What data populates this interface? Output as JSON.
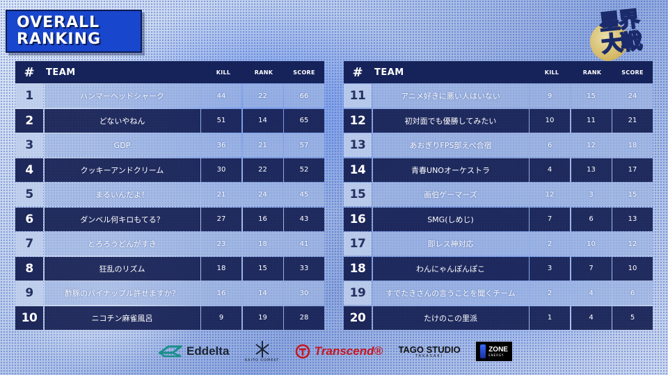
{
  "title": {
    "line1": "OVERALL",
    "line2": "RANKING"
  },
  "logo": {
    "text_top": "星界",
    "text_bottom": "大戦"
  },
  "headers": {
    "num": "#",
    "team": "TEAM",
    "kill": "KILL",
    "rank": "RANK",
    "score": "SCORE"
  },
  "left_rows": [
    {
      "rank": "1",
      "team": "ハンマーヘッドシャーク",
      "kill": "44",
      "rank_pts": "22",
      "score": "66"
    },
    {
      "rank": "2",
      "team": "どないやねん",
      "kill": "51",
      "rank_pts": "14",
      "score": "65"
    },
    {
      "rank": "3",
      "team": "GDP",
      "kill": "36",
      "rank_pts": "21",
      "score": "57"
    },
    {
      "rank": "4",
      "team": "クッキーアンドクリーム",
      "kill": "30",
      "rank_pts": "22",
      "score": "52"
    },
    {
      "rank": "5",
      "team": "まるいんだよ！",
      "kill": "21",
      "rank_pts": "24",
      "score": "45"
    },
    {
      "rank": "6",
      "team": "ダンベル何キロもてる？",
      "kill": "27",
      "rank_pts": "16",
      "score": "43"
    },
    {
      "rank": "7",
      "team": "とろろうどんがすき",
      "kill": "23",
      "rank_pts": "18",
      "score": "41"
    },
    {
      "rank": "8",
      "team": "狂乱のリズム",
      "kill": "18",
      "rank_pts": "15",
      "score": "33"
    },
    {
      "rank": "9",
      "team": "酢豚のパイナップル許せますか？",
      "kill": "16",
      "rank_pts": "14",
      "score": "30"
    },
    {
      "rank": "10",
      "team": "ニコチン麻雀風呂",
      "kill": "9",
      "rank_pts": "19",
      "score": "28"
    }
  ],
  "right_rows": [
    {
      "rank": "11",
      "team": "アニメ好きに悪い人はいない",
      "kill": "9",
      "rank_pts": "15",
      "score": "24"
    },
    {
      "rank": "12",
      "team": "初対面でも優勝してみたい",
      "kill": "10",
      "rank_pts": "11",
      "score": "21"
    },
    {
      "rank": "13",
      "team": "あおぎりFPS部えぺ合宿",
      "kill": "6",
      "rank_pts": "12",
      "score": "18"
    },
    {
      "rank": "14",
      "team": "青春UNOオーケストラ",
      "kill": "4",
      "rank_pts": "13",
      "score": "17"
    },
    {
      "rank": "15",
      "team": "画伯ゲーマーズ",
      "kill": "12",
      "rank_pts": "3",
      "score": "15"
    },
    {
      "rank": "16",
      "team": "SMG(しめじ)",
      "kill": "7",
      "rank_pts": "6",
      "score": "13"
    },
    {
      "rank": "17",
      "team": "即レス神対応",
      "kill": "2",
      "rank_pts": "10",
      "score": "12"
    },
    {
      "rank": "18",
      "team": "わんにゃんぽんぽこ",
      "kill": "3",
      "rank_pts": "7",
      "score": "10"
    },
    {
      "rank": "19",
      "team": "すでたきさんの言うことを聞くチーム",
      "kill": "2",
      "rank_pts": "4",
      "score": "6"
    },
    {
      "rank": "20",
      "team": "たけのこの里派",
      "kill": "1",
      "rank_pts": "4",
      "score": "5"
    }
  ],
  "sponsors": {
    "eddelta": "Eddelta",
    "kaito_text": "KAITO COMEKT",
    "transcend": "Transcend®",
    "tago_main": "TAGO STUDIO",
    "tago_sub": "TAKASAKI",
    "zone_main": "ZONE",
    "zone_sub": "ENERGY"
  },
  "colors": {
    "accent": "#1846cc",
    "header_bg": "#16235a",
    "transcend_red": "#c8141e"
  }
}
